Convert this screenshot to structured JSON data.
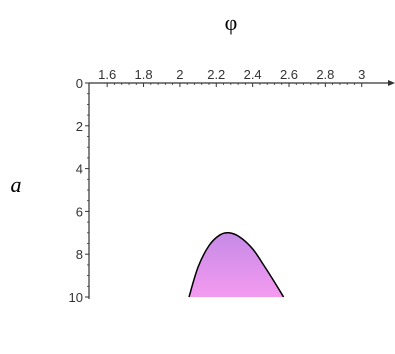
{
  "chart_data": {
    "type": "area",
    "xlabel": "φ",
    "ylabel": "a",
    "x_ticks": [
      1.6,
      1.8,
      2,
      2.2,
      2.4,
      2.6,
      2.8,
      3
    ],
    "x_tick_labels": [
      "1.6",
      "1.8",
      "2",
      "2.2",
      "2.4",
      "2.6",
      "2.8",
      "3"
    ],
    "y_ticks": [
      0,
      2,
      4,
      6,
      8,
      10
    ],
    "y_tick_labels": [
      "0",
      "2",
      "4",
      "6",
      "8",
      "10"
    ],
    "xlim": [
      1.5,
      3.15
    ],
    "ylim": [
      0,
      10
    ],
    "y_inverted": true,
    "x_axis_position": "top",
    "grid": false,
    "region": {
      "boundary_curve": [
        {
          "x": 2.05,
          "y": 10
        },
        {
          "x": 2.1,
          "y": 8.6
        },
        {
          "x": 2.16,
          "y": 7.6
        },
        {
          "x": 2.22,
          "y": 7.1
        },
        {
          "x": 2.27,
          "y": 7.0
        },
        {
          "x": 2.33,
          "y": 7.2
        },
        {
          "x": 2.4,
          "y": 7.75
        },
        {
          "x": 2.46,
          "y": 8.5
        },
        {
          "x": 2.52,
          "y": 9.3
        },
        {
          "x": 2.57,
          "y": 10
        }
      ],
      "fill_top_color": "#c58ae6",
      "fill_bottom_color": "#f49af0",
      "outline_color": "#000000"
    }
  }
}
